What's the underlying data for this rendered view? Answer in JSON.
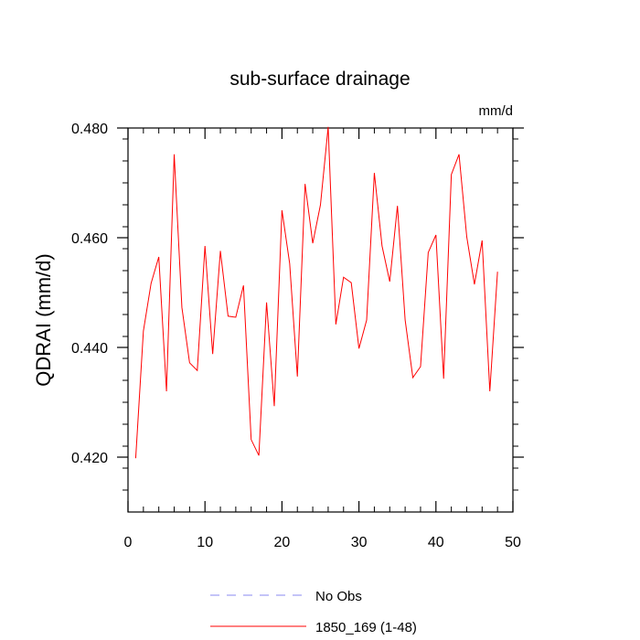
{
  "chart_data": {
    "type": "line",
    "title": "sub-surface drainage",
    "units": "mm/d",
    "ylabel": "QDRAI  (mm/d)",
    "xlabel": "",
    "xlim": [
      0,
      50
    ],
    "ylim": [
      0.41,
      0.48
    ],
    "xticks": [
      0,
      10,
      20,
      30,
      40,
      50
    ],
    "yticks": [
      0.42,
      0.44,
      0.46,
      0.48
    ],
    "ytick_labels": [
      "0.420",
      "0.440",
      "0.460",
      "0.480"
    ],
    "grid": false,
    "legend_position": "bottom",
    "series": [
      {
        "name": "No Obs",
        "color": "#8a8af0",
        "dash": true,
        "x": [],
        "y": []
      },
      {
        "name": "1850_169 (1-48)",
        "color": "#ff0000",
        "dash": false,
        "x": [
          1,
          2,
          3,
          4,
          5,
          6,
          7,
          8,
          9,
          10,
          11,
          12,
          13,
          14,
          15,
          16,
          17,
          18,
          19,
          20,
          21,
          22,
          23,
          24,
          25,
          26,
          27,
          28,
          29,
          30,
          31,
          32,
          33,
          34,
          35,
          36,
          37,
          38,
          39,
          40,
          41,
          42,
          43,
          44,
          45,
          46,
          47,
          48
        ],
        "y": [
          0.4198,
          0.443,
          0.4517,
          0.4565,
          0.432,
          0.4752,
          0.4473,
          0.4372,
          0.4358,
          0.4585,
          0.4388,
          0.4576,
          0.4457,
          0.4455,
          0.4513,
          0.4232,
          0.4203,
          0.4482,
          0.4293,
          0.465,
          0.4553,
          0.4347,
          0.4698,
          0.459,
          0.466,
          0.4802,
          0.4442,
          0.4528,
          0.4518,
          0.4398,
          0.445,
          0.4718,
          0.4585,
          0.452,
          0.4658,
          0.445,
          0.4345,
          0.4365,
          0.4573,
          0.4605,
          0.4343,
          0.4715,
          0.4752,
          0.4602,
          0.4515,
          0.4595,
          0.432,
          0.4538
        ]
      }
    ]
  }
}
